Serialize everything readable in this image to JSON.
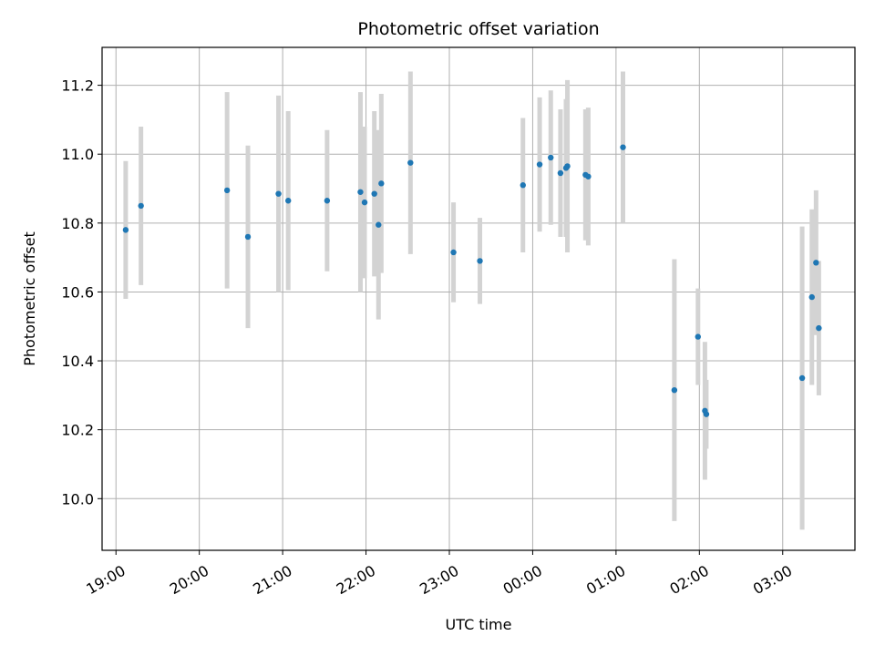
{
  "chart_data": {
    "type": "scatter",
    "title": "Photometric offset variation",
    "xlabel": "UTC time",
    "ylabel": "Photometric offset",
    "xlim": [
      "2024-01-01T18:50",
      "2024-01-02T03:52"
    ],
    "ylim": [
      9.85,
      11.31
    ],
    "x_ticks": [
      "19:00",
      "20:00",
      "21:00",
      "22:00",
      "23:00",
      "00:00",
      "01:00",
      "02:00",
      "03:00"
    ],
    "y_ticks": [
      "10.0",
      "10.2",
      "10.4",
      "10.6",
      "10.8",
      "11.0",
      "11.2"
    ],
    "grid": true,
    "colors": {
      "point": "#1f77b4",
      "errorbar": "#d3d3d3",
      "grid": "#b0b0b0"
    },
    "points": [
      {
        "x": "2024-01-01T19:07",
        "y": 10.78,
        "yerr": 0.2
      },
      {
        "x": "2024-01-01T19:18",
        "y": 10.85,
        "yerr": 0.23
      },
      {
        "x": "2024-01-01T20:20",
        "y": 10.895,
        "yerr": 0.285
      },
      {
        "x": "2024-01-01T20:35",
        "y": 10.76,
        "yerr": 0.265
      },
      {
        "x": "2024-01-01T20:57",
        "y": 10.885,
        "yerr": 0.285
      },
      {
        "x": "2024-01-01T21:04",
        "y": 10.865,
        "yerr": 0.26
      },
      {
        "x": "2024-01-01T21:32",
        "y": 10.865,
        "yerr": 0.205
      },
      {
        "x": "2024-01-01T21:56",
        "y": 10.89,
        "yerr": 0.29
      },
      {
        "x": "2024-01-01T21:59",
        "y": 10.86,
        "yerr": 0.22
      },
      {
        "x": "2024-01-01T22:06",
        "y": 10.885,
        "yerr": 0.24
      },
      {
        "x": "2024-01-01T22:09",
        "y": 10.795,
        "yerr": 0.275
      },
      {
        "x": "2024-01-01T22:11",
        "y": 10.915,
        "yerr": 0.26
      },
      {
        "x": "2024-01-01T22:32",
        "y": 10.975,
        "yerr": 0.265
      },
      {
        "x": "2024-01-01T23:03",
        "y": 10.715,
        "yerr": 0.145
      },
      {
        "x": "2024-01-01T23:22",
        "y": 10.69,
        "yerr": 0.125
      },
      {
        "x": "2024-01-01T23:53",
        "y": 10.91,
        "yerr": 0.195
      },
      {
        "x": "2024-01-02T00:05",
        "y": 10.97,
        "yerr": 0.195
      },
      {
        "x": "2024-01-02T00:13",
        "y": 10.99,
        "yerr": 0.195
      },
      {
        "x": "2024-01-02T00:20",
        "y": 10.945,
        "yerr": 0.185
      },
      {
        "x": "2024-01-02T00:24",
        "y": 10.96,
        "yerr": 0.2
      },
      {
        "x": "2024-01-02T00:25",
        "y": 10.965,
        "yerr": 0.25
      },
      {
        "x": "2024-01-02T00:38",
        "y": 10.94,
        "yerr": 0.19
      },
      {
        "x": "2024-01-02T00:40",
        "y": 10.935,
        "yerr": 0.2
      },
      {
        "x": "2024-01-02T01:05",
        "y": 11.02,
        "yerr": 0.22
      },
      {
        "x": "2024-01-02T01:42",
        "y": 10.315,
        "yerr": 0.38
      },
      {
        "x": "2024-01-02T01:59",
        "y": 10.47,
        "yerr": 0.14
      },
      {
        "x": "2024-01-02T02:04",
        "y": 10.255,
        "yerr": 0.2
      },
      {
        "x": "2024-01-02T02:05",
        "y": 10.245,
        "yerr": 0.1
      },
      {
        "x": "2024-01-02T03:14",
        "y": 10.35,
        "yerr": 0.44
      },
      {
        "x": "2024-01-02T03:21",
        "y": 10.585,
        "yerr": 0.255
      },
      {
        "x": "2024-01-02T03:24",
        "y": 10.685,
        "yerr": 0.21
      },
      {
        "x": "2024-01-02T03:26",
        "y": 10.495,
        "yerr": 0.195
      }
    ]
  }
}
